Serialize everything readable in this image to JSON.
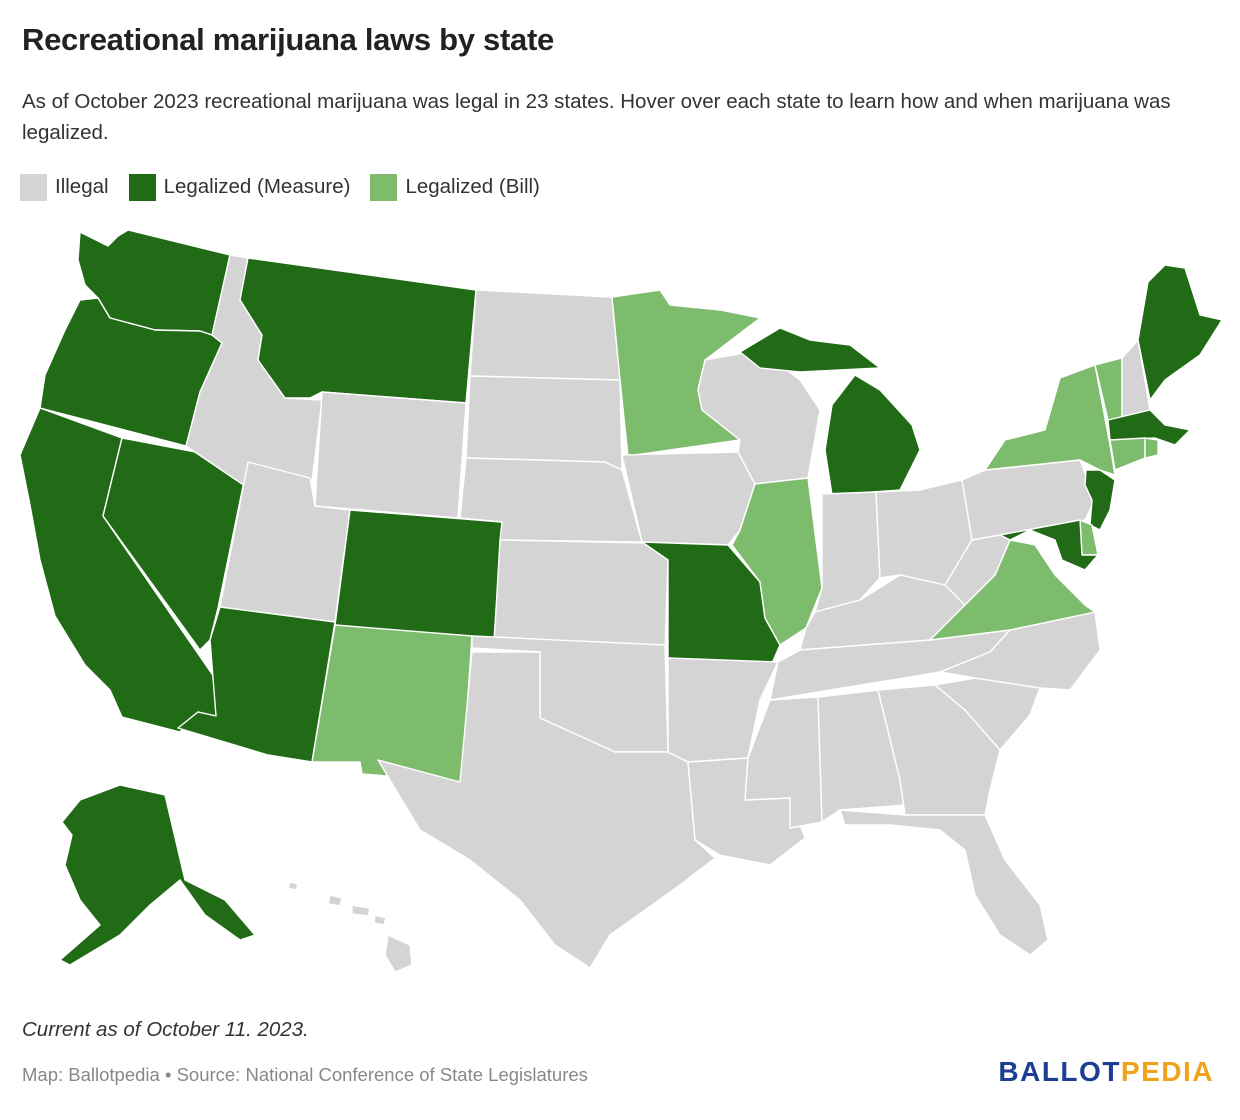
{
  "title": "Recreational marijuana laws by state",
  "subtitle": "As of October 2023 recreational marijuana was legal in 23 states. Hover over each state to learn how and when marijuana was legalized.",
  "legend": [
    {
      "label": "Illegal",
      "color": "#d4d4d4"
    },
    {
      "label": "Legalized (Measure)",
      "color": "#216b17"
    },
    {
      "label": "Legalized (Bill)",
      "color": "#7dbb6d"
    }
  ],
  "colors": {
    "illegal": "#d4d4d4",
    "measure": "#216b17",
    "bill": "#7dbb6d"
  },
  "map_data": {
    "type": "choropleth",
    "states": [
      {
        "code": "WA",
        "status": "measure"
      },
      {
        "code": "OR",
        "status": "measure"
      },
      {
        "code": "CA",
        "status": "measure"
      },
      {
        "code": "NV",
        "status": "measure"
      },
      {
        "code": "ID",
        "status": "illegal"
      },
      {
        "code": "MT",
        "status": "measure"
      },
      {
        "code": "WY",
        "status": "illegal"
      },
      {
        "code": "UT",
        "status": "illegal"
      },
      {
        "code": "AZ",
        "status": "measure"
      },
      {
        "code": "CO",
        "status": "measure"
      },
      {
        "code": "NM",
        "status": "bill"
      },
      {
        "code": "ND",
        "status": "illegal"
      },
      {
        "code": "SD",
        "status": "illegal"
      },
      {
        "code": "NE",
        "status": "illegal"
      },
      {
        "code": "KS",
        "status": "illegal"
      },
      {
        "code": "OK",
        "status": "illegal"
      },
      {
        "code": "TX",
        "status": "illegal"
      },
      {
        "code": "MN",
        "status": "bill"
      },
      {
        "code": "IA",
        "status": "illegal"
      },
      {
        "code": "MO",
        "status": "measure"
      },
      {
        "code": "AR",
        "status": "illegal"
      },
      {
        "code": "LA",
        "status": "illegal"
      },
      {
        "code": "WI",
        "status": "illegal"
      },
      {
        "code": "IL",
        "status": "bill"
      },
      {
        "code": "MI",
        "status": "measure"
      },
      {
        "code": "IN",
        "status": "illegal"
      },
      {
        "code": "OH",
        "status": "illegal"
      },
      {
        "code": "KY",
        "status": "illegal"
      },
      {
        "code": "TN",
        "status": "illegal"
      },
      {
        "code": "MS",
        "status": "illegal"
      },
      {
        "code": "AL",
        "status": "illegal"
      },
      {
        "code": "GA",
        "status": "illegal"
      },
      {
        "code": "FL",
        "status": "illegal"
      },
      {
        "code": "SC",
        "status": "illegal"
      },
      {
        "code": "NC",
        "status": "illegal"
      },
      {
        "code": "VA",
        "status": "bill"
      },
      {
        "code": "WV",
        "status": "illegal"
      },
      {
        "code": "PA",
        "status": "illegal"
      },
      {
        "code": "NY",
        "status": "bill"
      },
      {
        "code": "VT",
        "status": "bill"
      },
      {
        "code": "NH",
        "status": "illegal"
      },
      {
        "code": "ME",
        "status": "measure"
      },
      {
        "code": "MA",
        "status": "measure"
      },
      {
        "code": "RI",
        "status": "bill"
      },
      {
        "code": "CT",
        "status": "bill"
      },
      {
        "code": "NJ",
        "status": "measure"
      },
      {
        "code": "DE",
        "status": "bill"
      },
      {
        "code": "MD",
        "status": "measure"
      },
      {
        "code": "AK",
        "status": "measure"
      },
      {
        "code": "HI",
        "status": "illegal"
      }
    ]
  },
  "note": "Current as of October 11. 2023.",
  "source": "Map: Ballotpedia • Source: National Conference of State Legislatures",
  "logo": {
    "part1": "BALLOT",
    "part2": "PEDIA",
    "color1": "#1c3f94",
    "color2": "#f0a31a"
  }
}
